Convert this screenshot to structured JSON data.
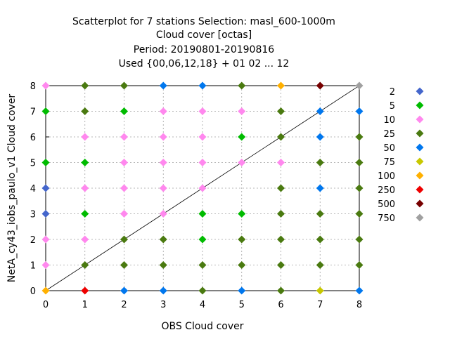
{
  "chart_data": {
    "type": "scatter",
    "title_lines": [
      "Scatterplot for    7 stations Selection: masl_600-1000m",
      "Cloud cover [octas]",
      "Period: 20190801-20190816",
      "Used {00,06,12,18} + 01 02 ... 12"
    ],
    "xlabel": "OBS Cloud cover",
    "ylabel": "NetA_cy43_iobs_paulo_v1 Cloud cover",
    "xlim": [
      0,
      8
    ],
    "ylim": [
      0,
      8
    ],
    "xticks": [
      "0",
      "1",
      "2",
      "3",
      "4",
      "5",
      "6",
      "7",
      "8"
    ],
    "yticks": [
      "0",
      "1",
      "2",
      "3",
      "4",
      "5",
      "6",
      "7",
      "8"
    ],
    "grid": true,
    "diagonal_line": true,
    "legend_position": "right",
    "legend": [
      {
        "label": "2",
        "color": "#4466cc"
      },
      {
        "label": "5",
        "color": "#00bb00"
      },
      {
        "label": "10",
        "color": "#ff88ee"
      },
      {
        "label": "25",
        "color": "#4a7a10"
      },
      {
        "label": "50",
        "color": "#0077ee"
      },
      {
        "label": "75",
        "color": "#c8c800"
      },
      {
        "label": "100",
        "color": "#ffb000"
      },
      {
        "label": "250",
        "color": "#ee0000"
      },
      {
        "label": "500",
        "color": "#770000"
      },
      {
        "label": "750",
        "color": "#a0a0a0"
      }
    ],
    "points": [
      {
        "x": 0,
        "y": 0,
        "color": "#ffb000"
      },
      {
        "x": 1,
        "y": 0,
        "color": "#ee0000"
      },
      {
        "x": 2,
        "y": 0,
        "color": "#0077ee"
      },
      {
        "x": 3,
        "y": 0,
        "color": "#0077ee"
      },
      {
        "x": 4,
        "y": 0,
        "color": "#4a7a10"
      },
      {
        "x": 5,
        "y": 0,
        "color": "#0077ee"
      },
      {
        "x": 6,
        "y": 0,
        "color": "#4a7a10"
      },
      {
        "x": 7,
        "y": 0,
        "color": "#c8c800"
      },
      {
        "x": 8,
        "y": 0,
        "color": "#0077ee"
      },
      {
        "x": 0,
        "y": 1,
        "color": "#ff88ee"
      },
      {
        "x": 1,
        "y": 1,
        "color": "#4a7a10"
      },
      {
        "x": 2,
        "y": 1,
        "color": "#4a7a10"
      },
      {
        "x": 3,
        "y": 1,
        "color": "#4a7a10"
      },
      {
        "x": 4,
        "y": 1,
        "color": "#4a7a10"
      },
      {
        "x": 5,
        "y": 1,
        "color": "#4a7a10"
      },
      {
        "x": 6,
        "y": 1,
        "color": "#4a7a10"
      },
      {
        "x": 7,
        "y": 1,
        "color": "#4a7a10"
      },
      {
        "x": 8,
        "y": 1,
        "color": "#4a7a10"
      },
      {
        "x": 0,
        "y": 2,
        "color": "#ff88ee"
      },
      {
        "x": 1,
        "y": 2,
        "color": "#ff88ee"
      },
      {
        "x": 2,
        "y": 2,
        "color": "#4a7a10"
      },
      {
        "x": 3,
        "y": 2,
        "color": "#4a7a10"
      },
      {
        "x": 4,
        "y": 2,
        "color": "#00bb00"
      },
      {
        "x": 5,
        "y": 2,
        "color": "#4a7a10"
      },
      {
        "x": 6,
        "y": 2,
        "color": "#4a7a10"
      },
      {
        "x": 7,
        "y": 2,
        "color": "#4a7a10"
      },
      {
        "x": 8,
        "y": 2,
        "color": "#4a7a10"
      },
      {
        "x": 0,
        "y": 3,
        "color": "#4466cc"
      },
      {
        "x": 1,
        "y": 3,
        "color": "#00bb00"
      },
      {
        "x": 2,
        "y": 3,
        "color": "#ff88ee"
      },
      {
        "x": 3,
        "y": 3,
        "color": "#ff88ee"
      },
      {
        "x": 4,
        "y": 3,
        "color": "#00bb00"
      },
      {
        "x": 5,
        "y": 3,
        "color": "#00bb00"
      },
      {
        "x": 6,
        "y": 3,
        "color": "#4a7a10"
      },
      {
        "x": 7,
        "y": 3,
        "color": "#4a7a10"
      },
      {
        "x": 8,
        "y": 3,
        "color": "#4a7a10"
      },
      {
        "x": 0,
        "y": 4,
        "color": "#4466cc"
      },
      {
        "x": 1,
        "y": 4,
        "color": "#ff88ee"
      },
      {
        "x": 2,
        "y": 4,
        "color": "#ff88ee"
      },
      {
        "x": 3,
        "y": 4,
        "color": "#ff88ee"
      },
      {
        "x": 4,
        "y": 4,
        "color": "#ff88ee"
      },
      {
        "x": 6,
        "y": 4,
        "color": "#4a7a10"
      },
      {
        "x": 7,
        "y": 4,
        "color": "#0077ee"
      },
      {
        "x": 8,
        "y": 4,
        "color": "#4a7a10"
      },
      {
        "x": 0,
        "y": 5,
        "color": "#00bb00"
      },
      {
        "x": 1,
        "y": 5,
        "color": "#00bb00"
      },
      {
        "x": 2,
        "y": 5,
        "color": "#ff88ee"
      },
      {
        "x": 3,
        "y": 5,
        "color": "#ff88ee"
      },
      {
        "x": 4,
        "y": 5,
        "color": "#ff88ee"
      },
      {
        "x": 5,
        "y": 5,
        "color": "#ff88ee"
      },
      {
        "x": 6,
        "y": 5,
        "color": "#ff88ee"
      },
      {
        "x": 7,
        "y": 5,
        "color": "#4a7a10"
      },
      {
        "x": 8,
        "y": 5,
        "color": "#4a7a10"
      },
      {
        "x": 1,
        "y": 6,
        "color": "#ff88ee"
      },
      {
        "x": 2,
        "y": 6,
        "color": "#ff88ee"
      },
      {
        "x": 3,
        "y": 6,
        "color": "#ff88ee"
      },
      {
        "x": 4,
        "y": 6,
        "color": "#ff88ee"
      },
      {
        "x": 5,
        "y": 6,
        "color": "#00bb00"
      },
      {
        "x": 6,
        "y": 6,
        "color": "#4a7a10"
      },
      {
        "x": 7,
        "y": 6,
        "color": "#0077ee"
      },
      {
        "x": 8,
        "y": 6,
        "color": "#4a7a10"
      },
      {
        "x": 0,
        "y": 7,
        "color": "#00bb00"
      },
      {
        "x": 1,
        "y": 7,
        "color": "#4a7a10"
      },
      {
        "x": 2,
        "y": 7,
        "color": "#00bb00"
      },
      {
        "x": 3,
        "y": 7,
        "color": "#ff88ee"
      },
      {
        "x": 4,
        "y": 7,
        "color": "#ff88ee"
      },
      {
        "x": 5,
        "y": 7,
        "color": "#ff88ee"
      },
      {
        "x": 6,
        "y": 7,
        "color": "#4a7a10"
      },
      {
        "x": 7,
        "y": 7,
        "color": "#0077ee"
      },
      {
        "x": 8,
        "y": 7,
        "color": "#0077ee"
      },
      {
        "x": 0,
        "y": 8,
        "color": "#ff88ee"
      },
      {
        "x": 1,
        "y": 8,
        "color": "#4a7a10"
      },
      {
        "x": 2,
        "y": 8,
        "color": "#4a7a10"
      },
      {
        "x": 3,
        "y": 8,
        "color": "#0077ee"
      },
      {
        "x": 4,
        "y": 8,
        "color": "#0077ee"
      },
      {
        "x": 5,
        "y": 8,
        "color": "#4a7a10"
      },
      {
        "x": 6,
        "y": 8,
        "color": "#ffb000"
      },
      {
        "x": 7,
        "y": 8,
        "color": "#770000"
      },
      {
        "x": 8,
        "y": 8,
        "color": "#a0a0a0"
      }
    ]
  }
}
